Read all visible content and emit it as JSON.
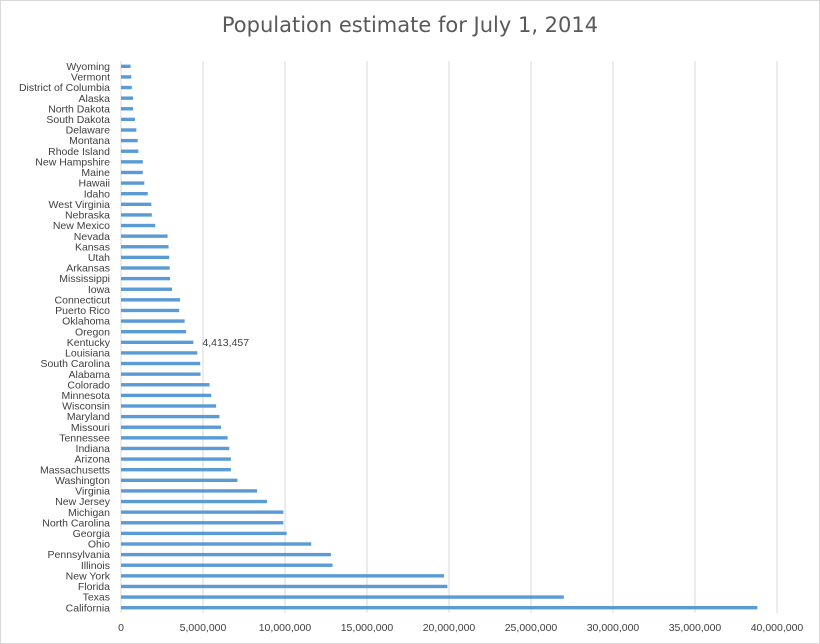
{
  "chart_data": {
    "type": "bar",
    "orientation": "horizontal",
    "title": "Population estimate for July 1, 2014",
    "xlabel": "",
    "ylabel": "",
    "xlim": [
      0,
      40000000
    ],
    "xticks": [
      0,
      5000000,
      10000000,
      15000000,
      20000000,
      25000000,
      30000000,
      35000000,
      40000000
    ],
    "xtick_labels": [
      "0",
      "5,000,000",
      "10,000,000",
      "15,000,000",
      "20,000,000",
      "25,000,000",
      "30,000,000",
      "35,000,000",
      "40,000,000"
    ],
    "grid": "vertical",
    "legend": "none",
    "bar_color": "#5b9bd5",
    "categories": [
      "California",
      "Texas",
      "Florida",
      "New York",
      "Illinois",
      "Pennsylvania",
      "Ohio",
      "Georgia",
      "North Carolina",
      "Michigan",
      "New Jersey",
      "Virginia",
      "Washington",
      "Massachusetts",
      "Arizona",
      "Indiana",
      "Tennessee",
      "Missouri",
      "Maryland",
      "Wisconsin",
      "Minnesota",
      "Colorado",
      "Alabama",
      "South Carolina",
      "Louisiana",
      "Kentucky",
      "Oregon",
      "Oklahoma",
      "Puerto Rico",
      "Connecticut",
      "Iowa",
      "Mississippi",
      "Arkansas",
      "Utah",
      "Kansas",
      "Nevada",
      "New Mexico",
      "Nebraska",
      "West Virginia",
      "Idaho",
      "Hawaii",
      "Maine",
      "New Hampshire",
      "Rhode Island",
      "Montana",
      "Delaware",
      "South Dakota",
      "North Dakota",
      "Alaska",
      "District of Columbia",
      "Vermont",
      "Wyoming"
    ],
    "values": [
      38800000,
      27000000,
      19900000,
      19700000,
      12900000,
      12800000,
      11600000,
      10100000,
      9900000,
      9900000,
      8900000,
      8300000,
      7100000,
      6700000,
      6700000,
      6600000,
      6500000,
      6100000,
      6000000,
      5800000,
      5500000,
      5400000,
      4850000,
      4830000,
      4650000,
      4413457,
      3970000,
      3880000,
      3550000,
      3600000,
      3110000,
      2990000,
      2970000,
      2940000,
      2900000,
      2840000,
      2090000,
      1880000,
      1850000,
      1630000,
      1420000,
      1330000,
      1330000,
      1060000,
      1020000,
      936000,
      853000,
      739000,
      737000,
      659000,
      627000,
      584000
    ],
    "data_labels": [
      {
        "category": "Kentucky",
        "text": "4,413,457"
      }
    ]
  }
}
